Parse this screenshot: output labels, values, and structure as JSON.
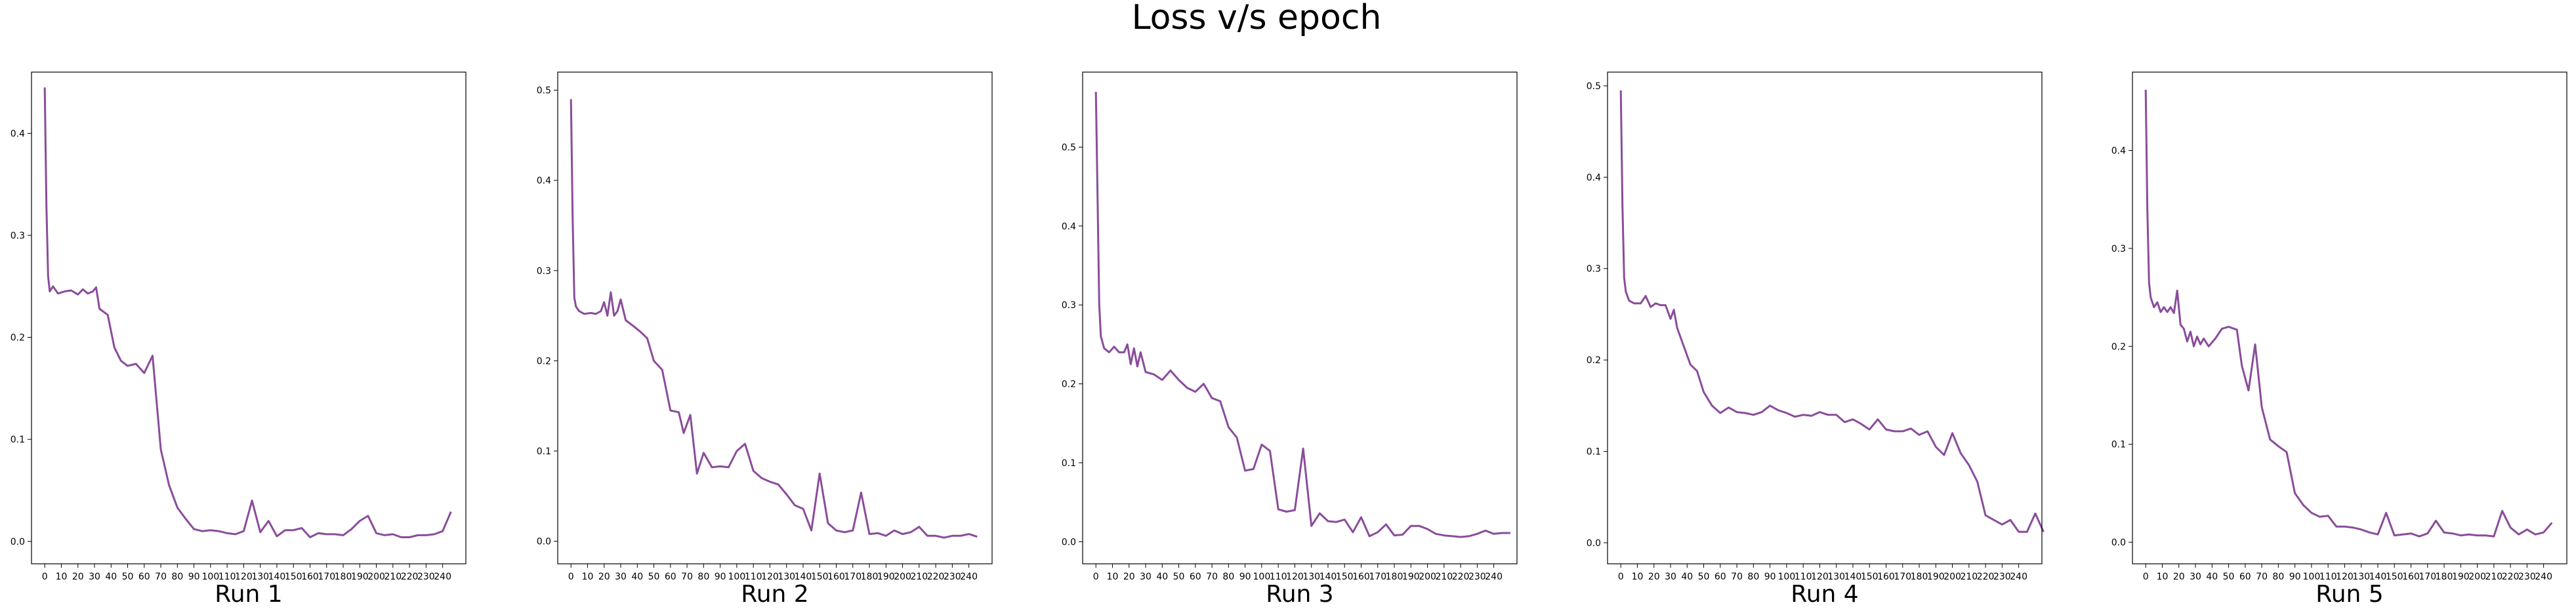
{
  "title": "Loss v/s epoch",
  "line_color": "#8a4d9a",
  "chart_data": [
    {
      "type": "line",
      "xlabel": "Run 1",
      "ylabel": "",
      "ylim": [
        -0.022,
        0.46
      ],
      "yticks": [
        0.0,
        0.1,
        0.2,
        0.3,
        0.4
      ],
      "ytick_labels": [
        "0.0",
        "0.1",
        "0.2",
        "0.3",
        "0.4"
      ],
      "xticks": [
        0,
        10,
        20,
        30,
        40,
        50,
        60,
        70,
        80,
        90,
        100,
        110,
        120,
        130,
        140,
        150,
        160,
        170,
        180,
        190,
        200,
        210,
        220,
        230,
        240
      ],
      "xlim": [
        -8,
        254
      ],
      "points": [
        [
          0,
          0.445
        ],
        [
          1,
          0.33
        ],
        [
          2,
          0.26
        ],
        [
          3,
          0.245
        ],
        [
          5,
          0.25
        ],
        [
          8,
          0.243
        ],
        [
          12,
          0.245
        ],
        [
          16,
          0.246
        ],
        [
          20,
          0.242
        ],
        [
          23,
          0.247
        ],
        [
          26,
          0.243
        ],
        [
          29,
          0.245
        ],
        [
          31,
          0.249
        ],
        [
          33,
          0.228
        ],
        [
          38,
          0.222
        ],
        [
          42,
          0.19
        ],
        [
          46,
          0.177
        ],
        [
          50,
          0.172
        ],
        [
          55,
          0.174
        ],
        [
          60,
          0.165
        ],
        [
          65,
          0.182
        ],
        [
          70,
          0.09
        ],
        [
          75,
          0.055
        ],
        [
          80,
          0.033
        ],
        [
          85,
          0.022
        ],
        [
          90,
          0.012
        ],
        [
          95,
          0.01
        ],
        [
          100,
          0.011
        ],
        [
          105,
          0.01
        ],
        [
          110,
          0.008
        ],
        [
          115,
          0.007
        ],
        [
          120,
          0.01
        ],
        [
          125,
          0.04
        ],
        [
          130,
          0.009
        ],
        [
          135,
          0.02
        ],
        [
          140,
          0.005
        ],
        [
          145,
          0.011
        ],
        [
          150,
          0.011
        ],
        [
          155,
          0.013
        ],
        [
          160,
          0.004
        ],
        [
          165,
          0.008
        ],
        [
          170,
          0.007
        ],
        [
          175,
          0.007
        ],
        [
          180,
          0.006
        ],
        [
          185,
          0.012
        ],
        [
          190,
          0.02
        ],
        [
          195,
          0.025
        ],
        [
          200,
          0.008
        ],
        [
          205,
          0.006
        ],
        [
          210,
          0.007
        ],
        [
          215,
          0.004
        ],
        [
          220,
          0.004
        ],
        [
          225,
          0.006
        ],
        [
          230,
          0.006
        ],
        [
          235,
          0.007
        ],
        [
          240,
          0.01
        ],
        [
          245,
          0.029
        ]
      ]
    },
    {
      "type": "line",
      "xlabel": "Run 2",
      "ylabel": "",
      "ylim": [
        -0.025,
        0.52
      ],
      "yticks": [
        0.0,
        0.1,
        0.2,
        0.3,
        0.4,
        0.5
      ],
      "ytick_labels": [
        "0.0",
        "0.1",
        "0.2",
        "0.3",
        "0.4",
        "0.5"
      ],
      "xticks": [
        0,
        10,
        20,
        30,
        40,
        50,
        60,
        70,
        80,
        90,
        100,
        110,
        120,
        130,
        140,
        150,
        160,
        170,
        180,
        190,
        200,
        210,
        220,
        230,
        240
      ],
      "xlim": [
        -8,
        254
      ],
      "points": [
        [
          0,
          0.49
        ],
        [
          1,
          0.36
        ],
        [
          2,
          0.27
        ],
        [
          3,
          0.26
        ],
        [
          5,
          0.255
        ],
        [
          8,
          0.252
        ],
        [
          12,
          0.253
        ],
        [
          15,
          0.252
        ],
        [
          18,
          0.255
        ],
        [
          20,
          0.265
        ],
        [
          22,
          0.25
        ],
        [
          24,
          0.276
        ],
        [
          26,
          0.25
        ],
        [
          28,
          0.255
        ],
        [
          30,
          0.268
        ],
        [
          33,
          0.245
        ],
        [
          38,
          0.238
        ],
        [
          42,
          0.232
        ],
        [
          46,
          0.225
        ],
        [
          50,
          0.2
        ],
        [
          55,
          0.19
        ],
        [
          60,
          0.145
        ],
        [
          65,
          0.143
        ],
        [
          68,
          0.12
        ],
        [
          72,
          0.14
        ],
        [
          76,
          0.075
        ],
        [
          80,
          0.098
        ],
        [
          85,
          0.082
        ],
        [
          90,
          0.083
        ],
        [
          95,
          0.082
        ],
        [
          100,
          0.1
        ],
        [
          105,
          0.108
        ],
        [
          110,
          0.078
        ],
        [
          115,
          0.07
        ],
        [
          120,
          0.066
        ],
        [
          125,
          0.063
        ],
        [
          130,
          0.052
        ],
        [
          135,
          0.04
        ],
        [
          140,
          0.036
        ],
        [
          145,
          0.012
        ],
        [
          150,
          0.075
        ],
        [
          155,
          0.02
        ],
        [
          160,
          0.012
        ],
        [
          165,
          0.01
        ],
        [
          170,
          0.012
        ],
        [
          175,
          0.054
        ],
        [
          180,
          0.008
        ],
        [
          185,
          0.009
        ],
        [
          190,
          0.006
        ],
        [
          195,
          0.012
        ],
        [
          200,
          0.008
        ],
        [
          205,
          0.01
        ],
        [
          210,
          0.016
        ],
        [
          215,
          0.006
        ],
        [
          220,
          0.006
        ],
        [
          225,
          0.004
        ],
        [
          230,
          0.006
        ],
        [
          235,
          0.006
        ],
        [
          240,
          0.008
        ],
        [
          245,
          0.005
        ]
      ]
    },
    {
      "type": "line",
      "xlabel": "Run 3",
      "ylabel": "",
      "ylim": [
        -0.028,
        0.595
      ],
      "yticks": [
        0.0,
        0.1,
        0.2,
        0.3,
        0.4,
        0.5
      ],
      "ytick_labels": [
        "0.0",
        "0.1",
        "0.2",
        "0.3",
        "0.4",
        "0.5"
      ],
      "xticks": [
        0,
        10,
        20,
        30,
        40,
        50,
        60,
        70,
        80,
        90,
        100,
        110,
        120,
        130,
        140,
        150,
        160,
        170,
        180,
        190,
        200,
        210,
        220,
        230,
        240
      ],
      "xlim": [
        -8,
        254
      ],
      "points": [
        [
          0,
          0.57
        ],
        [
          1,
          0.44
        ],
        [
          2,
          0.3
        ],
        [
          3,
          0.26
        ],
        [
          5,
          0.245
        ],
        [
          8,
          0.24
        ],
        [
          11,
          0.247
        ],
        [
          14,
          0.24
        ],
        [
          17,
          0.24
        ],
        [
          19,
          0.25
        ],
        [
          21,
          0.225
        ],
        [
          23,
          0.245
        ],
        [
          25,
          0.222
        ],
        [
          27,
          0.24
        ],
        [
          30,
          0.215
        ],
        [
          35,
          0.212
        ],
        [
          40,
          0.205
        ],
        [
          45,
          0.217
        ],
        [
          50,
          0.205
        ],
        [
          55,
          0.195
        ],
        [
          60,
          0.19
        ],
        [
          65,
          0.2
        ],
        [
          70,
          0.182
        ],
        [
          75,
          0.178
        ],
        [
          80,
          0.145
        ],
        [
          85,
          0.132
        ],
        [
          90,
          0.09
        ],
        [
          95,
          0.092
        ],
        [
          100,
          0.123
        ],
        [
          105,
          0.115
        ],
        [
          110,
          0.041
        ],
        [
          115,
          0.038
        ],
        [
          120,
          0.04
        ],
        [
          125,
          0.118
        ],
        [
          130,
          0.02
        ],
        [
          135,
          0.036
        ],
        [
          140,
          0.026
        ],
        [
          145,
          0.025
        ],
        [
          150,
          0.028
        ],
        [
          155,
          0.012
        ],
        [
          160,
          0.031
        ],
        [
          165,
          0.007
        ],
        [
          170,
          0.012
        ],
        [
          175,
          0.022
        ],
        [
          180,
          0.008
        ],
        [
          185,
          0.009
        ],
        [
          190,
          0.02
        ],
        [
          195,
          0.02
        ],
        [
          200,
          0.016
        ],
        [
          205,
          0.01
        ],
        [
          210,
          0.008
        ],
        [
          215,
          0.007
        ],
        [
          220,
          0.006
        ],
        [
          225,
          0.007
        ],
        [
          230,
          0.01
        ],
        [
          235,
          0.014
        ],
        [
          240,
          0.01
        ],
        [
          245,
          0.011
        ],
        [
          250,
          0.011
        ]
      ]
    },
    {
      "type": "line",
      "xlabel": "Run 4",
      "ylabel": "",
      "ylim": [
        -0.023,
        0.515
      ],
      "yticks": [
        0.0,
        0.1,
        0.2,
        0.3,
        0.4,
        0.5
      ],
      "ytick_labels": [
        "0.0",
        "0.1",
        "0.2",
        "0.3",
        "0.4",
        "0.5"
      ],
      "xticks": [
        0,
        10,
        20,
        30,
        40,
        50,
        60,
        70,
        80,
        90,
        100,
        110,
        120,
        130,
        140,
        150,
        160,
        170,
        180,
        190,
        200,
        210,
        220,
        230,
        240
      ],
      "xlim": [
        -8,
        254
      ],
      "points": [
        [
          0,
          0.495
        ],
        [
          1,
          0.37
        ],
        [
          2,
          0.29
        ],
        [
          3,
          0.275
        ],
        [
          5,
          0.265
        ],
        [
          8,
          0.262
        ],
        [
          12,
          0.262
        ],
        [
          15,
          0.27
        ],
        [
          18,
          0.258
        ],
        [
          21,
          0.262
        ],
        [
          24,
          0.26
        ],
        [
          27,
          0.26
        ],
        [
          30,
          0.245
        ],
        [
          32,
          0.255
        ],
        [
          34,
          0.235
        ],
        [
          38,
          0.215
        ],
        [
          42,
          0.195
        ],
        [
          46,
          0.188
        ],
        [
          50,
          0.165
        ],
        [
          55,
          0.15
        ],
        [
          60,
          0.142
        ],
        [
          65,
          0.148
        ],
        [
          70,
          0.143
        ],
        [
          75,
          0.142
        ],
        [
          80,
          0.14
        ],
        [
          85,
          0.143
        ],
        [
          90,
          0.15
        ],
        [
          95,
          0.145
        ],
        [
          100,
          0.142
        ],
        [
          105,
          0.138
        ],
        [
          110,
          0.14
        ],
        [
          115,
          0.139
        ],
        [
          120,
          0.143
        ],
        [
          125,
          0.14
        ],
        [
          130,
          0.14
        ],
        [
          135,
          0.132
        ],
        [
          140,
          0.135
        ],
        [
          145,
          0.13
        ],
        [
          150,
          0.124
        ],
        [
          155,
          0.135
        ],
        [
          160,
          0.124
        ],
        [
          165,
          0.122
        ],
        [
          170,
          0.122
        ],
        [
          175,
          0.125
        ],
        [
          180,
          0.118
        ],
        [
          185,
          0.122
        ],
        [
          190,
          0.105
        ],
        [
          195,
          0.096
        ],
        [
          200,
          0.12
        ],
        [
          205,
          0.098
        ],
        [
          210,
          0.085
        ],
        [
          215,
          0.067
        ],
        [
          220,
          0.03
        ],
        [
          225,
          0.025
        ],
        [
          230,
          0.02
        ],
        [
          235,
          0.025
        ],
        [
          240,
          0.012
        ],
        [
          245,
          0.012
        ],
        [
          250,
          0.032
        ],
        [
          255,
          0.012
        ]
      ]
    },
    {
      "type": "line",
      "xlabel": "Run 5",
      "ylabel": "",
      "ylim": [
        -0.022,
        0.48
      ],
      "yticks": [
        0.0,
        0.1,
        0.2,
        0.3,
        0.4
      ],
      "ytick_labels": [
        "0.0",
        "0.1",
        "0.2",
        "0.3",
        "0.4"
      ],
      "xticks": [
        0,
        10,
        20,
        30,
        40,
        50,
        60,
        70,
        80,
        90,
        100,
        110,
        120,
        130,
        140,
        150,
        160,
        170,
        180,
        190,
        200,
        210,
        220,
        230,
        240
      ],
      "xlim": [
        -8,
        254
      ],
      "points": [
        [
          0,
          0.462
        ],
        [
          1,
          0.34
        ],
        [
          2,
          0.265
        ],
        [
          3,
          0.25
        ],
        [
          5,
          0.24
        ],
        [
          7,
          0.245
        ],
        [
          9,
          0.235
        ],
        [
          11,
          0.24
        ],
        [
          13,
          0.235
        ],
        [
          15,
          0.24
        ],
        [
          17,
          0.234
        ],
        [
          19,
          0.257
        ],
        [
          21,
          0.222
        ],
        [
          23,
          0.218
        ],
        [
          25,
          0.205
        ],
        [
          27,
          0.215
        ],
        [
          29,
          0.2
        ],
        [
          31,
          0.21
        ],
        [
          33,
          0.202
        ],
        [
          35,
          0.208
        ],
        [
          38,
          0.2
        ],
        [
          42,
          0.208
        ],
        [
          46,
          0.218
        ],
        [
          50,
          0.22
        ],
        [
          55,
          0.217
        ],
        [
          58,
          0.18
        ],
        [
          62,
          0.155
        ],
        [
          66,
          0.202
        ],
        [
          70,
          0.138
        ],
        [
          75,
          0.105
        ],
        [
          80,
          0.098
        ],
        [
          85,
          0.092
        ],
        [
          90,
          0.05
        ],
        [
          95,
          0.038
        ],
        [
          100,
          0.03
        ],
        [
          105,
          0.026
        ],
        [
          110,
          0.027
        ],
        [
          115,
          0.016
        ],
        [
          120,
          0.016
        ],
        [
          125,
          0.015
        ],
        [
          130,
          0.013
        ],
        [
          135,
          0.01
        ],
        [
          140,
          0.008
        ],
        [
          145,
          0.03
        ],
        [
          150,
          0.007
        ],
        [
          155,
          0.008
        ],
        [
          160,
          0.009
        ],
        [
          165,
          0.006
        ],
        [
          170,
          0.009
        ],
        [
          175,
          0.022
        ],
        [
          180,
          0.01
        ],
        [
          185,
          0.009
        ],
        [
          190,
          0.007
        ],
        [
          195,
          0.008
        ],
        [
          200,
          0.007
        ],
        [
          205,
          0.007
        ],
        [
          210,
          0.006
        ],
        [
          215,
          0.032
        ],
        [
          220,
          0.015
        ],
        [
          225,
          0.008
        ],
        [
          230,
          0.013
        ],
        [
          235,
          0.008
        ],
        [
          240,
          0.01
        ],
        [
          245,
          0.02
        ]
      ]
    }
  ]
}
